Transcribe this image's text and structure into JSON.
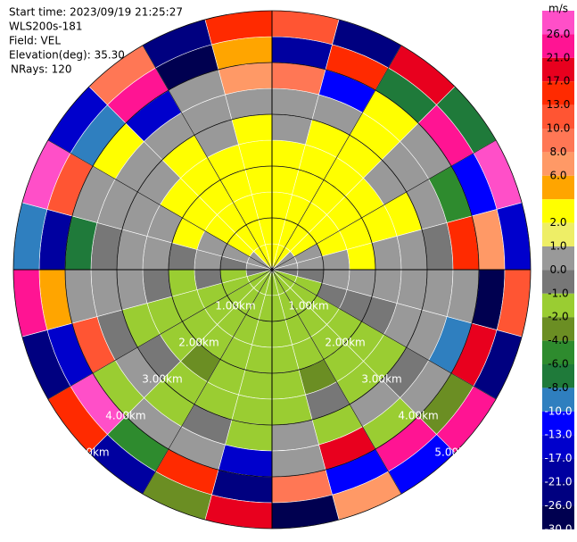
{
  "chart_data": {
    "type": "ppi",
    "info": [
      "Start time: 2023/09/19 21:25:27",
      "WLS200s-181",
      "Field: VEL",
      "Elevation(deg): 35.30",
      "NRays: 120"
    ],
    "rings": [
      {
        "value": 1,
        "label": "1.00km"
      },
      {
        "value": 2,
        "label": "2.00km"
      },
      {
        "value": 3,
        "label": "3.00km"
      },
      {
        "value": 4,
        "label": "4.00km"
      },
      {
        "value": 5,
        "label": "5.00km"
      }
    ],
    "velocity": [
      [
        2,
        2,
        2,
        0,
        0,
        0,
        -1,
        -2,
        -2,
        -2,
        -2,
        -2,
        -2,
        -2,
        -2,
        -2,
        -2,
        -1,
        0,
        0,
        0,
        2,
        2,
        2
      ],
      [
        2,
        2,
        2,
        2,
        0,
        0,
        -1,
        -2,
        -2,
        -2,
        -2,
        -2,
        -2,
        -2,
        -2,
        -2,
        -2,
        -2,
        -1,
        0,
        2,
        2,
        2,
        2
      ],
      [
        2,
        2,
        2,
        2,
        2,
        0,
        0,
        -1,
        -2,
        -2,
        -2,
        -2,
        -2,
        -2,
        -2,
        -2,
        -2,
        -1,
        0,
        0,
        2,
        2,
        2,
        2
      ],
      [
        2,
        2,
        2,
        2,
        2,
        2,
        0,
        -1,
        -2,
        -2,
        -2,
        -2,
        -2,
        -2,
        -2,
        -2,
        -2,
        -2,
        -1,
        2,
        2,
        2,
        2,
        2
      ],
      [
        2,
        2,
        2,
        2,
        2,
        0,
        0,
        -1,
        -2,
        -2,
        -3,
        -2,
        -2,
        -2,
        -3,
        -2,
        -2,
        -1,
        0,
        0,
        2,
        2,
        2,
        2
      ],
      [
        0,
        2,
        2,
        0,
        2,
        0,
        0,
        0,
        -2,
        -2,
        -1,
        -2,
        -2,
        -2,
        -2,
        -1,
        -2,
        0,
        0,
        0,
        0,
        2,
        0,
        2
      ],
      [
        0,
        0,
        2,
        0,
        0,
        -1,
        0,
        0,
        -1,
        0,
        -2,
        0,
        -2,
        -1,
        -2,
        0,
        -1,
        0,
        -1,
        0,
        0,
        0,
        0,
        0
      ],
      [
        8,
        -13,
        3,
        0,
        -6,
        15,
        0,
        -10,
        0,
        -2,
        20,
        0,
        -17,
        0,
        0,
        -2,
        12,
        0,
        -8,
        0,
        3,
        -15,
        0,
        6
      ],
      [
        -21,
        14,
        -8,
        25,
        -13,
        7,
        -27,
        18,
        -4,
        22,
        -11,
        9,
        -24,
        16,
        -6,
        27,
        -15,
        4,
        -19,
        11,
        -9,
        23,
        -28,
        5
      ],
      [
        12,
        -25,
        20,
        -7,
        28,
        -16,
        10,
        -22,
        24,
        -12,
        6,
        -29,
        18,
        -3,
        -20,
        13,
        -26,
        21,
        -9,
        27,
        -14,
        8,
        -23,
        16
      ]
    ],
    "colorbar": {
      "label": "m/s",
      "levels": [
        null,
        {
          "value": 26,
          "label": "26.0"
        },
        {
          "value": 21,
          "label": "21.0"
        },
        {
          "value": 17,
          "label": "17.0"
        },
        {
          "value": 13,
          "label": "13.0"
        },
        {
          "value": 10,
          "label": "10.0"
        },
        {
          "value": 8,
          "label": "8.0"
        },
        {
          "value": 6,
          "label": "6.0"
        },
        null,
        {
          "value": 2,
          "label": "2.0"
        },
        {
          "value": 1,
          "label": "1.0"
        },
        {
          "value": 0,
          "label": "0.0"
        },
        {
          "value": -1,
          "label": "-1.0"
        },
        {
          "value": -2,
          "label": "-2.0"
        },
        {
          "value": -4,
          "label": "-4.0"
        },
        {
          "value": -6,
          "label": "-6.0"
        },
        {
          "value": -8,
          "label": "-8.0"
        },
        {
          "value": -10,
          "label": "-10.0"
        },
        {
          "value": -13,
          "label": "-13.0"
        },
        {
          "value": -17,
          "label": "-17.0"
        },
        {
          "value": -21,
          "label": "-21.0"
        },
        {
          "value": -26,
          "label": "-26.0"
        },
        {
          "value": -30,
          "label": "-30.0"
        }
      ],
      "colors": [
        "#ff4fc8",
        "#ff1493",
        "#e8001e",
        "#ff2a00",
        "#ff5533",
        "#ff7755",
        "#ff9966",
        "#ffa500",
        "#ffff00",
        "#eeee66",
        "#999999",
        "#777777",
        "#9acd32",
        "#6b8e23",
        "#2e8b2e",
        "#1f7a3a",
        "#2f7fbf",
        "#0000ff",
        "#0000cc",
        "#0000a0",
        "#000080",
        "#000050"
      ]
    }
  }
}
